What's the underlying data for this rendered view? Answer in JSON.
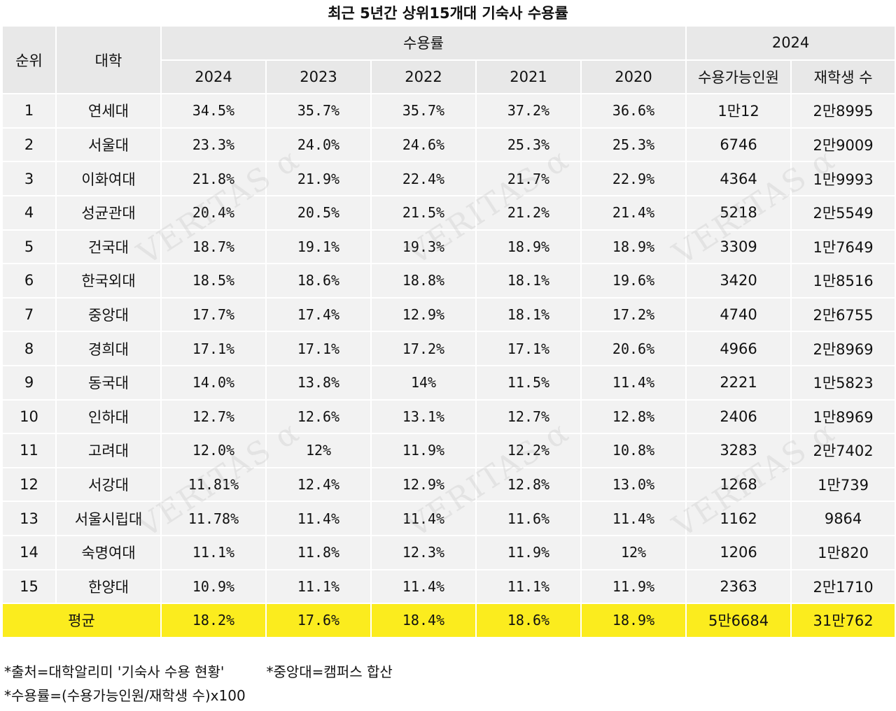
{
  "chart_data": {
    "type": "table",
    "title": "최근 5년간 상위15개대 기숙사 수용률",
    "header": {
      "rank": "순위",
      "university": "대학",
      "rate_group": "수용률",
      "years": [
        "2024",
        "2023",
        "2022",
        "2021",
        "2020"
      ],
      "year_group": "2024",
      "capacity": "수용가능인원",
      "enrolled": "재학생 수"
    },
    "rows": [
      {
        "rank": "1",
        "univ": "연세대",
        "rates": [
          "34.5%",
          "35.7%",
          "35.7%",
          "37.2%",
          "36.6%"
        ],
        "capacity": "1만12",
        "enrolled": "2만8995"
      },
      {
        "rank": "2",
        "univ": "서울대",
        "rates": [
          "23.3%",
          "24.0%",
          "24.6%",
          "25.3%",
          "25.3%"
        ],
        "capacity": "6746",
        "enrolled": "2만9009"
      },
      {
        "rank": "3",
        "univ": "이화여대",
        "rates": [
          "21.8%",
          "21.9%",
          "22.4%",
          "21.7%",
          "22.9%"
        ],
        "capacity": "4364",
        "enrolled": "1만9993"
      },
      {
        "rank": "4",
        "univ": "성균관대",
        "rates": [
          "20.4%",
          "20.5%",
          "21.5%",
          "21.2%",
          "21.4%"
        ],
        "capacity": "5218",
        "enrolled": "2만5549"
      },
      {
        "rank": "5",
        "univ": "건국대",
        "rates": [
          "18.7%",
          "19.1%",
          "19.3%",
          "18.9%",
          "18.9%"
        ],
        "capacity": "3309",
        "enrolled": "1만7649"
      },
      {
        "rank": "6",
        "univ": "한국외대",
        "rates": [
          "18.5%",
          "18.6%",
          "18.8%",
          "18.1%",
          "19.6%"
        ],
        "capacity": "3420",
        "enrolled": "1만8516"
      },
      {
        "rank": "7",
        "univ": "중앙대",
        "rates": [
          "17.7%",
          "17.4%",
          "12.9%",
          "18.1%",
          "17.2%"
        ],
        "capacity": "4740",
        "enrolled": "2만6755"
      },
      {
        "rank": "8",
        "univ": "경희대",
        "rates": [
          "17.1%",
          "17.1%",
          "17.2%",
          "17.1%",
          "20.6%"
        ],
        "capacity": "4966",
        "enrolled": "2만8969"
      },
      {
        "rank": "9",
        "univ": "동국대",
        "rates": [
          "14.0%",
          "13.8%",
          "14%",
          "11.5%",
          "11.4%"
        ],
        "capacity": "2221",
        "enrolled": "1만5823"
      },
      {
        "rank": "10",
        "univ": "인하대",
        "rates": [
          "12.7%",
          "12.6%",
          "13.1%",
          "12.7%",
          "12.8%"
        ],
        "capacity": "2406",
        "enrolled": "1만8969"
      },
      {
        "rank": "11",
        "univ": "고려대",
        "rates": [
          "12.0%",
          "12%",
          "11.9%",
          "12.2%",
          "10.8%"
        ],
        "capacity": "3283",
        "enrolled": "2만7402"
      },
      {
        "rank": "12",
        "univ": "서강대",
        "rates": [
          "11.81%",
          "12.4%",
          "12.9%",
          "12.8%",
          "13.0%"
        ],
        "capacity": "1268",
        "enrolled": "1만739"
      },
      {
        "rank": "13",
        "univ": "서울시립대",
        "rates": [
          "11.78%",
          "11.4%",
          "11.4%",
          "11.6%",
          "11.4%"
        ],
        "capacity": "1162",
        "enrolled": "9864"
      },
      {
        "rank": "14",
        "univ": "숙명여대",
        "rates": [
          "11.1%",
          "11.8%",
          "12.3%",
          "11.9%",
          "12%"
        ],
        "capacity": "1206",
        "enrolled": "1만820"
      },
      {
        "rank": "15",
        "univ": "한양대",
        "rates": [
          "10.9%",
          "11.1%",
          "11.4%",
          "11.1%",
          "11.9%"
        ],
        "capacity": "2363",
        "enrolled": "2만1710"
      }
    ],
    "average": {
      "label": "평균",
      "rates": [
        "18.2%",
        "17.6%",
        "18.4%",
        "18.6%",
        "18.9%"
      ],
      "capacity": "5만6684",
      "enrolled": "31만762"
    },
    "notes": [
      "*출처=대학알리미 '기숙사 수용 현황'",
      "*중앙대=캠퍼스 합산",
      "*수용률=(수용가능인원/재학생 수)x100"
    ]
  },
  "watermark": "VERITAS α",
  "colors": {
    "header_bg": "#e8e8e8",
    "row_bg": "#f2f2f2",
    "average_bg": "#fbec1e"
  }
}
